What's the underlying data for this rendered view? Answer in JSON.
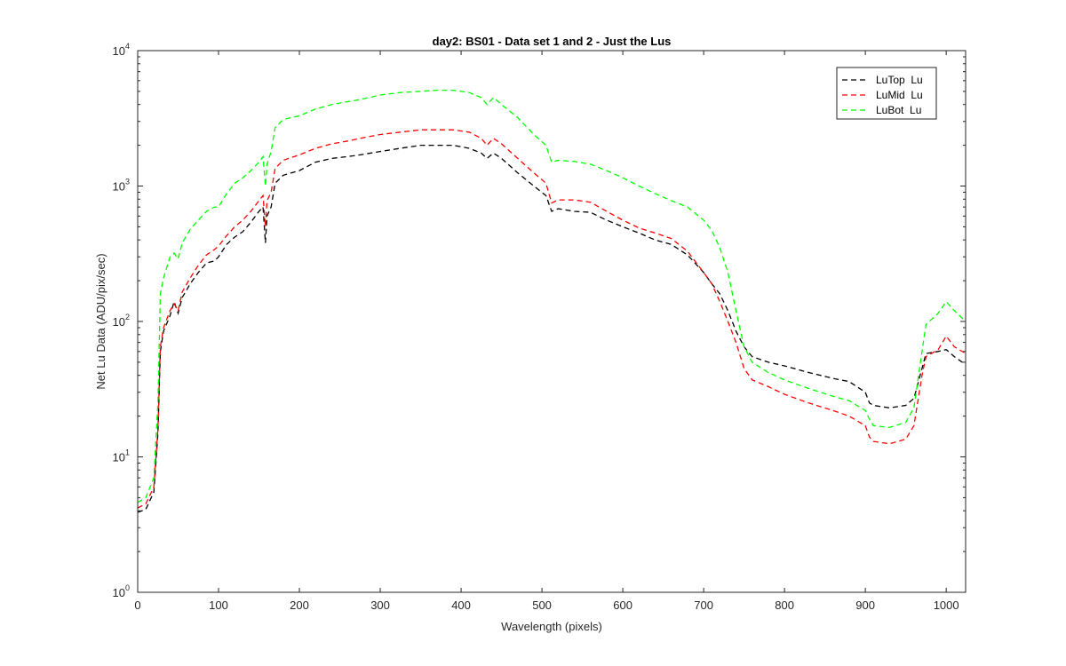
{
  "chart_data": {
    "type": "line",
    "title": "day2: BS01 - Data set 1 and 2 - Just the Lus",
    "xlabel": "Wavelength (pixels)",
    "ylabel": "Net Lu Data (ADU/pix/sec)",
    "xlim": [
      0,
      1024
    ],
    "ylim": [
      1,
      10000
    ],
    "yscale": "log",
    "xticks": [
      0,
      100,
      200,
      300,
      400,
      500,
      600,
      700,
      800,
      900,
      1000
    ],
    "yticks": [
      1,
      10,
      100,
      1000,
      10000
    ],
    "ytick_labels": [
      {
        "base": "10",
        "exp": "0"
      },
      {
        "base": "10",
        "exp": "1"
      },
      {
        "base": "10",
        "exp": "2"
      },
      {
        "base": "10",
        "exp": "3"
      },
      {
        "base": "10",
        "exp": "4"
      }
    ],
    "legend_position": "top-right",
    "series": [
      {
        "name": "LuTop  Lu",
        "color": "#000000",
        "style": "dashed",
        "points": [
          [
            0,
            3.9
          ],
          [
            10,
            4.1
          ],
          [
            20,
            5.5
          ],
          [
            25,
            15
          ],
          [
            28,
            60
          ],
          [
            32,
            85
          ],
          [
            40,
            110
          ],
          [
            45,
            140
          ],
          [
            50,
            115
          ],
          [
            55,
            150
          ],
          [
            65,
            190
          ],
          [
            75,
            230
          ],
          [
            85,
            270
          ],
          [
            95,
            280
          ],
          [
            100,
            300
          ],
          [
            110,
            370
          ],
          [
            120,
            420
          ],
          [
            130,
            460
          ],
          [
            140,
            540
          ],
          [
            150,
            650
          ],
          [
            155,
            700
          ],
          [
            158,
            380
          ],
          [
            160,
            600
          ],
          [
            165,
            700
          ],
          [
            170,
            1050
          ],
          [
            180,
            1200
          ],
          [
            200,
            1300
          ],
          [
            220,
            1500
          ],
          [
            240,
            1600
          ],
          [
            260,
            1650
          ],
          [
            275,
            1700
          ],
          [
            300,
            1800
          ],
          [
            325,
            1900
          ],
          [
            350,
            2000
          ],
          [
            370,
            2000
          ],
          [
            390,
            2000
          ],
          [
            410,
            1900
          ],
          [
            425,
            1750
          ],
          [
            432,
            1600
          ],
          [
            440,
            1750
          ],
          [
            450,
            1600
          ],
          [
            470,
            1250
          ],
          [
            490,
            1000
          ],
          [
            505,
            850
          ],
          [
            512,
            650
          ],
          [
            520,
            680
          ],
          [
            540,
            650
          ],
          [
            560,
            640
          ],
          [
            580,
            560
          ],
          [
            600,
            500
          ],
          [
            620,
            450
          ],
          [
            640,
            400
          ],
          [
            660,
            370
          ],
          [
            680,
            310
          ],
          [
            700,
            230
          ],
          [
            710,
            190
          ],
          [
            720,
            160
          ],
          [
            730,
            120
          ],
          [
            740,
            85
          ],
          [
            750,
            65
          ],
          [
            760,
            55
          ],
          [
            780,
            50
          ],
          [
            800,
            47
          ],
          [
            830,
            42
          ],
          [
            860,
            38
          ],
          [
            880,
            36
          ],
          [
            900,
            30
          ],
          [
            905,
            25
          ],
          [
            910,
            24
          ],
          [
            930,
            23
          ],
          [
            950,
            24
          ],
          [
            960,
            27
          ],
          [
            970,
            45
          ],
          [
            975,
            58
          ],
          [
            990,
            60
          ],
          [
            1000,
            62
          ],
          [
            1010,
            55
          ],
          [
            1024,
            48
          ]
        ]
      },
      {
        "name": "LuMid  Lu",
        "color": "#ff0000",
        "style": "dashed",
        "points": [
          [
            0,
            4.2
          ],
          [
            10,
            4.5
          ],
          [
            20,
            6
          ],
          [
            25,
            16
          ],
          [
            28,
            65
          ],
          [
            32,
            90
          ],
          [
            40,
            120
          ],
          [
            45,
            135
          ],
          [
            50,
            120
          ],
          [
            55,
            165
          ],
          [
            65,
            210
          ],
          [
            75,
            260
          ],
          [
            85,
            310
          ],
          [
            95,
            340
          ],
          [
            100,
            360
          ],
          [
            110,
            430
          ],
          [
            120,
            500
          ],
          [
            130,
            560
          ],
          [
            140,
            650
          ],
          [
            150,
            780
          ],
          [
            155,
            850
          ],
          [
            158,
            500
          ],
          [
            160,
            780
          ],
          [
            165,
            900
          ],
          [
            170,
            1350
          ],
          [
            180,
            1550
          ],
          [
            200,
            1700
          ],
          [
            220,
            1900
          ],
          [
            240,
            2050
          ],
          [
            260,
            2150
          ],
          [
            275,
            2250
          ],
          [
            300,
            2400
          ],
          [
            325,
            2500
          ],
          [
            350,
            2600
          ],
          [
            370,
            2600
          ],
          [
            390,
            2600
          ],
          [
            410,
            2500
          ],
          [
            425,
            2250
          ],
          [
            432,
            2000
          ],
          [
            440,
            2250
          ],
          [
            450,
            2050
          ],
          [
            470,
            1600
          ],
          [
            490,
            1250
          ],
          [
            505,
            1050
          ],
          [
            512,
            750
          ],
          [
            520,
            790
          ],
          [
            540,
            790
          ],
          [
            560,
            760
          ],
          [
            580,
            650
          ],
          [
            600,
            560
          ],
          [
            620,
            490
          ],
          [
            640,
            450
          ],
          [
            660,
            410
          ],
          [
            680,
            330
          ],
          [
            700,
            230
          ],
          [
            710,
            190
          ],
          [
            720,
            140
          ],
          [
            730,
            100
          ],
          [
            740,
            70
          ],
          [
            750,
            45
          ],
          [
            760,
            37
          ],
          [
            780,
            33
          ],
          [
            800,
            29
          ],
          [
            830,
            25
          ],
          [
            860,
            22
          ],
          [
            880,
            20
          ],
          [
            900,
            17
          ],
          [
            905,
            14
          ],
          [
            910,
            13
          ],
          [
            930,
            12.5
          ],
          [
            950,
            13.5
          ],
          [
            960,
            17
          ],
          [
            970,
            40
          ],
          [
            975,
            55
          ],
          [
            990,
            62
          ],
          [
            1000,
            78
          ],
          [
            1010,
            65
          ],
          [
            1024,
            58
          ]
        ]
      },
      {
        "name": "LuBot  Lu",
        "color": "#00ff00",
        "style": "dashed",
        "points": [
          [
            0,
            4.6
          ],
          [
            10,
            5
          ],
          [
            20,
            7
          ],
          [
            25,
            25
          ],
          [
            28,
            160
          ],
          [
            32,
            210
          ],
          [
            40,
            300
          ],
          [
            45,
            320
          ],
          [
            50,
            290
          ],
          [
            55,
            380
          ],
          [
            65,
            480
          ],
          [
            75,
            560
          ],
          [
            85,
            650
          ],
          [
            95,
            700
          ],
          [
            100,
            700
          ],
          [
            110,
            880
          ],
          [
            120,
            1050
          ],
          [
            130,
            1150
          ],
          [
            140,
            1300
          ],
          [
            150,
            1500
          ],
          [
            155,
            1650
          ],
          [
            158,
            1000
          ],
          [
            160,
            1450
          ],
          [
            165,
            1800
          ],
          [
            170,
            2700
          ],
          [
            180,
            3100
          ],
          [
            200,
            3300
          ],
          [
            220,
            3700
          ],
          [
            240,
            4000
          ],
          [
            260,
            4200
          ],
          [
            275,
            4350
          ],
          [
            300,
            4700
          ],
          [
            325,
            4900
          ],
          [
            350,
            5000
          ],
          [
            370,
            5100
          ],
          [
            390,
            5100
          ],
          [
            410,
            4900
          ],
          [
            425,
            4500
          ],
          [
            432,
            4000
          ],
          [
            440,
            4500
          ],
          [
            450,
            4000
          ],
          [
            470,
            3200
          ],
          [
            490,
            2400
          ],
          [
            505,
            2000
          ],
          [
            512,
            1500
          ],
          [
            520,
            1550
          ],
          [
            540,
            1520
          ],
          [
            560,
            1450
          ],
          [
            580,
            1300
          ],
          [
            600,
            1150
          ],
          [
            620,
            1000
          ],
          [
            640,
            880
          ],
          [
            660,
            780
          ],
          [
            680,
            700
          ],
          [
            700,
            560
          ],
          [
            710,
            470
          ],
          [
            720,
            350
          ],
          [
            730,
            230
          ],
          [
            740,
            120
          ],
          [
            750,
            65
          ],
          [
            760,
            50
          ],
          [
            780,
            42
          ],
          [
            800,
            37
          ],
          [
            830,
            32
          ],
          [
            860,
            28
          ],
          [
            880,
            26
          ],
          [
            900,
            22
          ],
          [
            905,
            19
          ],
          [
            910,
            17
          ],
          [
            930,
            16.5
          ],
          [
            950,
            18
          ],
          [
            960,
            23
          ],
          [
            970,
            60
          ],
          [
            975,
            95
          ],
          [
            990,
            115
          ],
          [
            1000,
            140
          ],
          [
            1010,
            120
          ],
          [
            1024,
            100
          ]
        ]
      }
    ]
  }
}
